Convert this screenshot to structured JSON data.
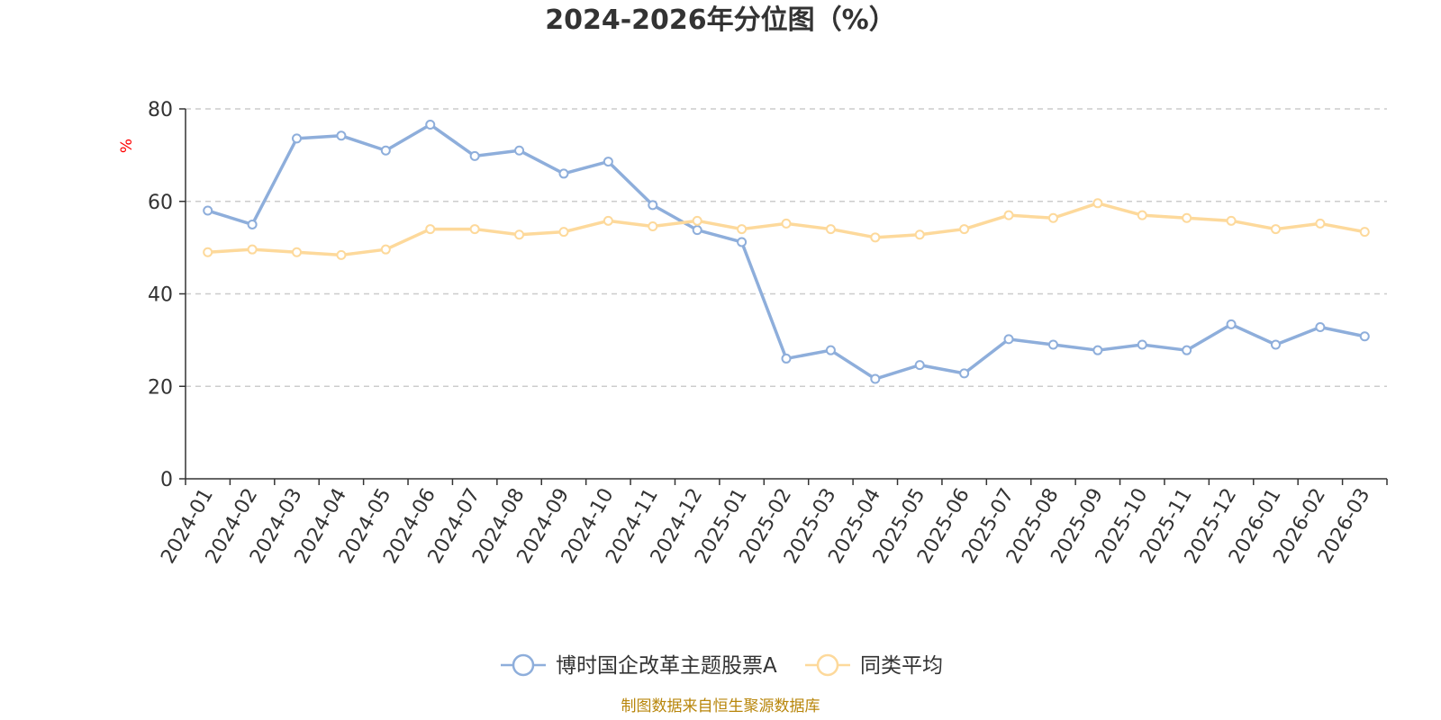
{
  "chart_data": {
    "type": "line",
    "title": "2024-2026年分位图（%）",
    "ylabel": "%",
    "ylim": [
      0,
      80
    ],
    "yticks": [
      0,
      20,
      40,
      60,
      80
    ],
    "grid": true,
    "legend_position": "bottom",
    "categories": [
      "2024-01",
      "2024-02",
      "2024-03",
      "2024-04",
      "2024-05",
      "2024-06",
      "2024-07",
      "2024-08",
      "2024-09",
      "2024-10",
      "2024-11",
      "2024-12",
      "2025-01",
      "2025-02",
      "2025-03",
      "2025-04",
      "2025-05",
      "2025-06",
      "2025-07",
      "2025-08",
      "2025-09",
      "2025-10",
      "2025-11",
      "2025-12",
      "2026-01",
      "2026-02",
      "2026-03"
    ],
    "series": [
      {
        "name": "博时国企改革主题股票A",
        "color": "#8eaedb",
        "values": [
          58,
          55,
          73.6,
          74.2,
          71,
          76.6,
          69.8,
          71,
          66,
          68.6,
          59.2,
          53.8,
          51.2,
          26,
          27.8,
          21.6,
          24.6,
          22.8,
          30.2,
          29,
          27.8,
          29,
          27.8,
          33.4,
          29,
          32.8,
          30.8
        ]
      },
      {
        "name": "同类平均",
        "color": "#fdd99b",
        "values": [
          49,
          49.6,
          49,
          48.4,
          49.6,
          54,
          54,
          52.8,
          53.4,
          55.8,
          54.6,
          55.8,
          54,
          55.2,
          54,
          52.2,
          52.8,
          54,
          57,
          56.4,
          59.6,
          57,
          56.4,
          55.8,
          54,
          55.2,
          53.4
        ]
      }
    ],
    "source": "制图数据来自恒生聚源数据库"
  }
}
